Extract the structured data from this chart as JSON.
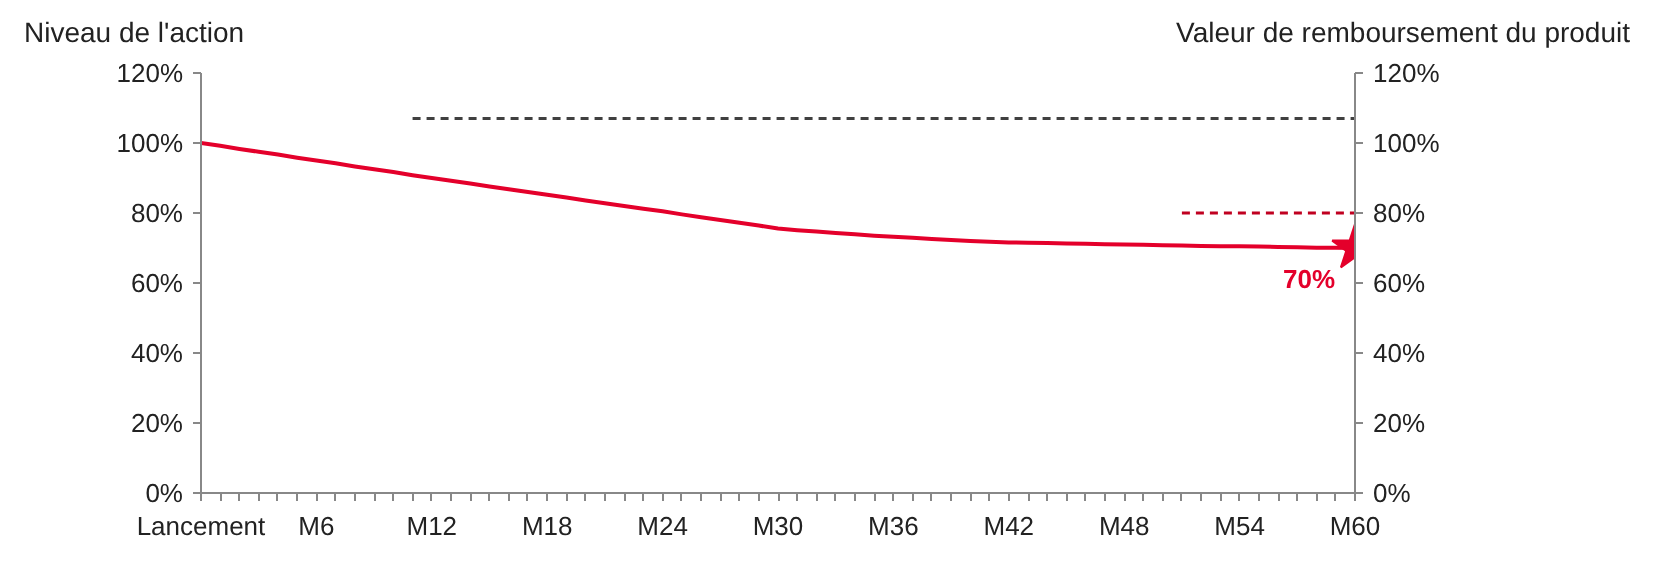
{
  "chart_data": {
    "type": "line",
    "ylabel": "Niveau de l'action",
    "y2label": "Valeur de remboursement du produit",
    "ylim": [
      0,
      120
    ],
    "y2lim": [
      0,
      120
    ],
    "categories": [
      "Lancement",
      null,
      null,
      null,
      null,
      null,
      "M6",
      null,
      null,
      null,
      null,
      null,
      "M12",
      null,
      null,
      null,
      null,
      null,
      "M18",
      null,
      null,
      null,
      null,
      null,
      "M24",
      null,
      null,
      null,
      null,
      null,
      "M30",
      null,
      null,
      null,
      null,
      null,
      "M36",
      null,
      null,
      null,
      null,
      null,
      "M42",
      null,
      null,
      null,
      null,
      null,
      "M48",
      null,
      null,
      null,
      null,
      null,
      "M54",
      null,
      null,
      null,
      null,
      null,
      "M60"
    ],
    "yticks": [
      {
        "value": 0,
        "label": "0%"
      },
      {
        "value": 20,
        "label": "20%"
      },
      {
        "value": 40,
        "label": "40%"
      },
      {
        "value": 60,
        "label": "60%"
      },
      {
        "value": 80,
        "label": "80%"
      },
      {
        "value": 100,
        "label": "100%"
      },
      {
        "value": 120,
        "label": "120%"
      }
    ],
    "y2ticks": [
      {
        "value": 0,
        "label": "0%"
      },
      {
        "value": 20,
        "label": "20%"
      },
      {
        "value": 40,
        "label": "40%"
      },
      {
        "value": 60,
        "label": "60%"
      },
      {
        "value": 80,
        "label": "80%"
      },
      {
        "value": 100,
        "label": "100%"
      },
      {
        "value": 120,
        "label": "120%"
      }
    ],
    "series": [
      {
        "line_style": "solid",
        "color": "#e4002b",
        "values": [
          100,
          99.2,
          98.3,
          97.5,
          96.7,
          95.8,
          95,
          94.2,
          93.3,
          92.5,
          91.7,
          90.8,
          90,
          89.2,
          88.4,
          87.6,
          86.8,
          86,
          85.2,
          84.4,
          83.6,
          82.8,
          82,
          81.2,
          80.5,
          79.6,
          78.8,
          78,
          77.2,
          76.4,
          75.6,
          75.1,
          74.7,
          74.3,
          73.9,
          73.5,
          73.2,
          72.9,
          72.6,
          72.3,
          72,
          71.8,
          71.6,
          71.5,
          71.4,
          71.3,
          71.2,
          71.1,
          71,
          70.9,
          70.8,
          70.7,
          70.6,
          70.5,
          70.5,
          70.4,
          70.3,
          70.2,
          70.1,
          70.1,
          70
        ]
      },
      {
        "line_style": "dashed",
        "color": "#404040",
        "values": [
          null,
          null,
          null,
          null,
          null,
          null,
          null,
          null,
          null,
          null,
          null,
          107,
          107,
          107,
          107,
          107,
          107,
          107,
          107,
          107,
          107,
          107,
          107,
          107,
          107,
          107,
          107,
          107,
          107,
          107,
          107,
          107,
          107,
          107,
          107,
          107,
          107,
          107,
          107,
          107,
          107,
          107,
          107,
          107,
          107,
          107,
          107,
          107,
          107,
          107,
          107,
          107,
          107,
          107,
          107,
          107,
          107,
          107,
          107,
          107,
          107
        ]
      },
      {
        "line_style": "dashed",
        "color": "#c00020",
        "values": [
          null,
          null,
          null,
          null,
          null,
          null,
          null,
          null,
          null,
          null,
          null,
          null,
          null,
          null,
          null,
          null,
          null,
          null,
          null,
          null,
          null,
          null,
          null,
          null,
          null,
          null,
          null,
          null,
          null,
          null,
          null,
          null,
          null,
          null,
          null,
          null,
          null,
          null,
          null,
          null,
          null,
          null,
          null,
          null,
          null,
          null,
          null,
          null,
          null,
          null,
          null,
          80,
          80,
          80,
          80,
          80,
          80,
          80,
          80,
          80,
          80
        ]
      },
      {
        "type": "scatter",
        "marker": "star",
        "color": "#e4002b",
        "values": [
          null,
          null,
          null,
          null,
          null,
          null,
          null,
          null,
          null,
          null,
          null,
          null,
          null,
          null,
          null,
          null,
          null,
          null,
          null,
          null,
          null,
          null,
          null,
          null,
          null,
          null,
          null,
          null,
          null,
          null,
          null,
          null,
          null,
          null,
          null,
          null,
          null,
          null,
          null,
          null,
          null,
          null,
          null,
          null,
          null,
          null,
          null,
          null,
          null,
          null,
          null,
          null,
          null,
          null,
          null,
          null,
          null,
          null,
          null,
          null,
          70
        ],
        "value_labels": [
          null,
          null,
          null,
          null,
          null,
          null,
          null,
          null,
          null,
          null,
          null,
          null,
          null,
          null,
          null,
          null,
          null,
          null,
          null,
          null,
          null,
          null,
          null,
          null,
          null,
          null,
          null,
          null,
          null,
          null,
          null,
          null,
          null,
          null,
          null,
          null,
          null,
          null,
          null,
          null,
          null,
          null,
          null,
          null,
          null,
          null,
          null,
          null,
          null,
          null,
          null,
          null,
          null,
          null,
          null,
          null,
          null,
          null,
          null,
          null,
          "70%"
        ]
      }
    ]
  }
}
